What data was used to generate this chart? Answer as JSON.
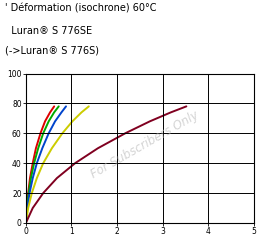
{
  "title_line1": "' Déformation (isochrone) 60°C",
  "title_line2": "  Luran® S 776SE",
  "title_line3": "(->Luran® S 776S)",
  "watermark": "For Subscribers Only",
  "curves": [
    {
      "color": "#dd0000",
      "x": [
        0.0,
        0.02,
        0.05,
        0.09,
        0.15,
        0.22,
        0.32,
        0.42,
        0.53,
        0.62
      ],
      "y": [
        0,
        10,
        20,
        30,
        40,
        50,
        60,
        68,
        74,
        78
      ]
    },
    {
      "color": "#00aa00",
      "x": [
        0.0,
        0.025,
        0.06,
        0.11,
        0.18,
        0.27,
        0.38,
        0.5,
        0.62,
        0.72
      ],
      "y": [
        0,
        10,
        20,
        30,
        40,
        50,
        60,
        68,
        74,
        78
      ]
    },
    {
      "color": "#0044cc",
      "x": [
        0.0,
        0.03,
        0.08,
        0.15,
        0.24,
        0.36,
        0.5,
        0.64,
        0.78,
        0.88
      ],
      "y": [
        0,
        10,
        20,
        30,
        40,
        50,
        60,
        68,
        74,
        78
      ]
    },
    {
      "color": "#cccc00",
      "x": [
        0.0,
        0.05,
        0.13,
        0.24,
        0.38,
        0.57,
        0.8,
        1.02,
        1.22,
        1.38
      ],
      "y": [
        0,
        10,
        20,
        30,
        40,
        50,
        60,
        68,
        74,
        78
      ]
    },
    {
      "color": "#800020",
      "x": [
        0.0,
        0.15,
        0.38,
        0.68,
        1.08,
        1.58,
        2.18,
        2.72,
        3.18,
        3.52
      ],
      "y": [
        0,
        10,
        20,
        30,
        40,
        50,
        60,
        68,
        74,
        78
      ]
    }
  ],
  "xlim": [
    0,
    5
  ],
  "ylim": [
    0,
    100
  ],
  "xticks": [
    0,
    1,
    2,
    3,
    4,
    5
  ],
  "yticks": [
    0,
    20,
    40,
    60,
    80,
    100
  ],
  "grid_color": "#000000",
  "bg_color": "#ffffff",
  "title_fontsize": 7.0,
  "subtitle_fontsize": 7.0,
  "watermark_fontsize": 8.5,
  "watermark_color": "#b8b8b8",
  "watermark_alpha": 0.6
}
